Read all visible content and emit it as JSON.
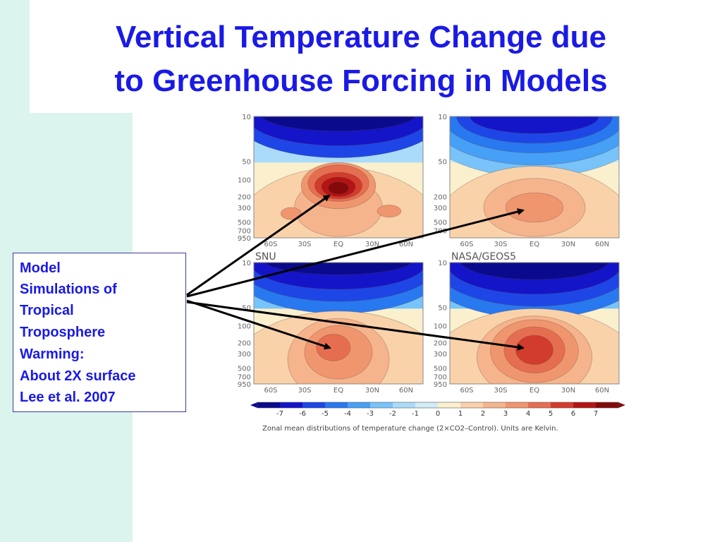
{
  "title": {
    "line1": "Vertical Temperature Change due",
    "line2": "to Greenhouse Forcing in Models"
  },
  "callout": {
    "lines": [
      "Model",
      "Simulations of",
      "Tropical",
      "Troposphere",
      "Warming:",
      "About 2X surface",
      "Lee et al. 2007"
    ]
  },
  "figure": {
    "panels": [
      {
        "label": "",
        "y_ticks": [
          "10",
          "50",
          "100",
          "200",
          "300",
          "500",
          "700",
          "950"
        ],
        "x_ticks": [
          "60S",
          "30S",
          "EQ",
          "30N",
          "60N"
        ],
        "peak_k": 7
      },
      {
        "label": "",
        "y_ticks": [
          "10",
          "50",
          "200",
          "300",
          "500",
          "700"
        ],
        "x_ticks": [
          "60S",
          "30S",
          "EQ",
          "30N",
          "60N"
        ],
        "peak_k": 4
      },
      {
        "label": "SNU",
        "y_ticks": [
          "10",
          "50",
          "100",
          "200",
          "300",
          "500",
          "700",
          "950"
        ],
        "x_ticks": [
          "60S",
          "30S",
          "EQ",
          "30N",
          "60N"
        ],
        "peak_k": 5
      },
      {
        "label": "NASA/GEOS5",
        "y_ticks": [
          "10",
          "50",
          "100",
          "200",
          "300",
          "500",
          "700",
          "950"
        ],
        "x_ticks": [
          "60S",
          "30S",
          "EQ",
          "30N",
          "60N"
        ],
        "peak_k": 6
      }
    ],
    "colorbar": {
      "labels": [
        "-7",
        "-6",
        "-5",
        "-4",
        "-3",
        "-2",
        "-1",
        "0",
        "1",
        "2",
        "3",
        "4",
        "5",
        "6",
        "7"
      ],
      "colors": [
        "#0a0a8c",
        "#1414c8",
        "#1e46e6",
        "#2878f0",
        "#46a0f5",
        "#78c3fa",
        "#aadcfa",
        "#d2ecf5",
        "#faf0cd",
        "#fad2aa",
        "#f5b48c",
        "#f0966e",
        "#e66e50",
        "#d23c2d",
        "#b41414",
        "#820a0a"
      ]
    },
    "caption": "Zonal mean distributions of temperature change (2×CO2–Control). Units are Kelvin."
  }
}
